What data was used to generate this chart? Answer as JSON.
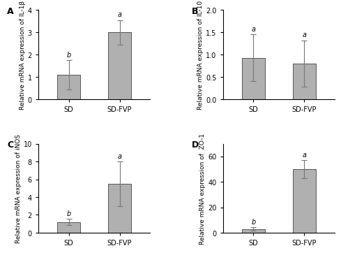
{
  "panels": [
    {
      "label": "A",
      "ylabel": "Relative mRNA expression of IL-1β",
      "categories": [
        "SD",
        "SD-FVP"
      ],
      "values": [
        1.1,
        3.0
      ],
      "errors": [
        0.65,
        0.55
      ],
      "sig_labels": [
        "b",
        "a"
      ],
      "ylim": [
        0,
        4
      ],
      "yticks": [
        0,
        1,
        2,
        3,
        4
      ]
    },
    {
      "label": "B",
      "ylabel": "Relative mRNA expression of IL-10",
      "categories": [
        "SD",
        "SD-FVP"
      ],
      "values": [
        0.93,
        0.8
      ],
      "errors": [
        0.52,
        0.52
      ],
      "sig_labels": [
        "a",
        "a"
      ],
      "ylim": [
        0,
        2.0
      ],
      "yticks": [
        0.0,
        0.5,
        1.0,
        1.5,
        2.0
      ]
    },
    {
      "label": "C",
      "ylabel": "Relative mRNA expression of iNOS",
      "categories": [
        "SD",
        "SD-FVP"
      ],
      "values": [
        1.2,
        5.5
      ],
      "errors": [
        0.35,
        2.5
      ],
      "sig_labels": [
        "b",
        "a"
      ],
      "ylim": [
        0,
        10
      ],
      "yticks": [
        0,
        2,
        4,
        6,
        8,
        10
      ]
    },
    {
      "label": "D",
      "ylabel": "Relative mRNA expression of  ZO-1",
      "categories": [
        "SD",
        "SD-FVP"
      ],
      "values": [
        3.0,
        50.0
      ],
      "errors": [
        1.2,
        7.0
      ],
      "sig_labels": [
        "b",
        "a"
      ],
      "ylim": [
        0,
        70
      ],
      "yticks": [
        0,
        20,
        40,
        60
      ]
    }
  ],
  "bar_color": "#b0b0b0",
  "bar_edgecolor": "#555555",
  "bar_width": 0.45,
  "capsize": 3,
  "error_color": "#888888",
  "sig_fontsize": 7,
  "label_fontsize": 6.5,
  "tick_fontsize": 7,
  "panel_label_fontsize": 9,
  "background_color": "#ffffff"
}
